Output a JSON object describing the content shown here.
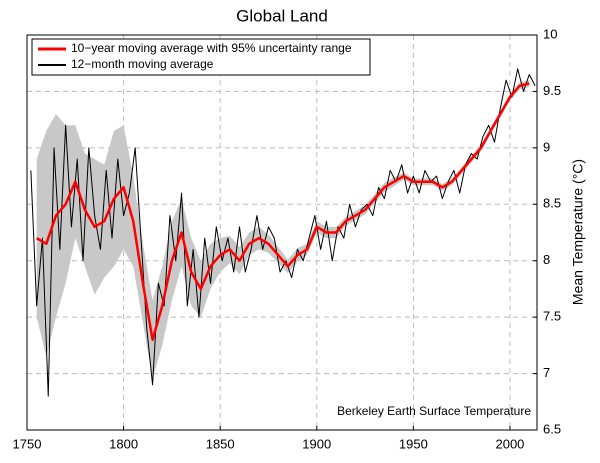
{
  "chart_data": {
    "type": "line",
    "title": "Global Land",
    "ylabel": "Mean Temperature (°C)",
    "annotation": "Berkeley Earth Surface Temperature",
    "xlim": [
      1750,
      2014
    ],
    "ylim": [
      6.5,
      10
    ],
    "xticks": [
      1750,
      1800,
      1850,
      1900,
      1950,
      2000
    ],
    "yticks": [
      6.5,
      7,
      7.5,
      8,
      8.5,
      9,
      9.5,
      10
    ],
    "grid": true,
    "legend": "upper left",
    "series": [
      {
        "name": "10−year moving average with 95% uncertainty range",
        "color": "#ff0000",
        "band_color": "#c8c8c8",
        "x": [
          1755,
          1760,
          1765,
          1770,
          1775,
          1780,
          1785,
          1790,
          1795,
          1800,
          1805,
          1810,
          1815,
          1820,
          1825,
          1830,
          1835,
          1840,
          1845,
          1850,
          1855,
          1860,
          1865,
          1870,
          1875,
          1880,
          1885,
          1890,
          1895,
          1900,
          1905,
          1910,
          1915,
          1920,
          1925,
          1930,
          1935,
          1940,
          1945,
          1950,
          1955,
          1960,
          1965,
          1970,
          1975,
          1980,
          1985,
          1990,
          1995,
          2000,
          2005,
          2010
        ],
        "values": [
          8.2,
          8.15,
          8.4,
          8.5,
          8.7,
          8.45,
          8.3,
          8.35,
          8.55,
          8.65,
          8.35,
          7.8,
          7.3,
          7.6,
          8.0,
          8.25,
          7.9,
          7.75,
          7.95,
          8.05,
          8.1,
          8.0,
          8.15,
          8.2,
          8.15,
          8.05,
          7.95,
          8.05,
          8.1,
          8.3,
          8.25,
          8.25,
          8.35,
          8.4,
          8.45,
          8.55,
          8.65,
          8.7,
          8.75,
          8.7,
          8.7,
          8.7,
          8.65,
          8.7,
          8.8,
          8.9,
          9.0,
          9.15,
          9.3,
          9.45,
          9.55,
          9.57
        ],
        "lower": [
          7.5,
          7.15,
          7.5,
          7.8,
          8.2,
          7.95,
          7.7,
          7.85,
          7.95,
          8.1,
          7.95,
          7.45,
          6.95,
          7.25,
          7.65,
          7.95,
          7.6,
          7.5,
          7.75,
          7.9,
          7.98,
          7.88,
          8.05,
          8.1,
          8.07,
          7.98,
          7.89,
          7.99,
          8.05,
          8.25,
          8.2,
          8.2,
          8.31,
          8.36,
          8.41,
          8.51,
          8.61,
          8.66,
          8.72,
          8.67,
          8.67,
          8.67,
          8.62,
          8.67,
          8.77,
          8.87,
          8.97,
          9.12,
          9.27,
          9.42,
          9.52,
          9.54
        ],
        "upper": [
          8.9,
          9.15,
          9.3,
          9.2,
          9.2,
          8.95,
          8.9,
          8.85,
          9.15,
          9.2,
          8.75,
          8.15,
          7.65,
          7.95,
          8.35,
          8.55,
          8.2,
          8.0,
          8.15,
          8.2,
          8.22,
          8.12,
          8.25,
          8.3,
          8.23,
          8.12,
          8.01,
          8.11,
          8.15,
          8.35,
          8.3,
          8.3,
          8.39,
          8.44,
          8.49,
          8.59,
          8.69,
          8.74,
          8.78,
          8.73,
          8.73,
          8.73,
          8.68,
          8.73,
          8.83,
          8.93,
          9.03,
          9.18,
          9.33,
          9.48,
          9.58,
          9.6
        ]
      },
      {
        "name": "12−month moving average",
        "color": "#000000",
        "x": [
          1752,
          1755,
          1758,
          1761,
          1764,
          1767,
          1770,
          1773,
          1776,
          1779,
          1782,
          1785,
          1788,
          1791,
          1794,
          1797,
          1800,
          1803,
          1806,
          1809,
          1812,
          1815,
          1818,
          1821,
          1824,
          1827,
          1830,
          1833,
          1836,
          1839,
          1842,
          1845,
          1848,
          1851,
          1854,
          1857,
          1860,
          1863,
          1866,
          1869,
          1872,
          1875,
          1878,
          1881,
          1884,
          1887,
          1890,
          1893,
          1896,
          1899,
          1902,
          1905,
          1908,
          1911,
          1914,
          1917,
          1920,
          1923,
          1926,
          1929,
          1932,
          1935,
          1938,
          1941,
          1944,
          1947,
          1950,
          1953,
          1956,
          1959,
          1962,
          1965,
          1968,
          1971,
          1974,
          1977,
          1980,
          1983,
          1986,
          1989,
          1992,
          1995,
          1998,
          2001,
          2004,
          2007,
          2010,
          2013
        ],
        "values": [
          8.8,
          7.6,
          8.2,
          6.8,
          9.0,
          8.1,
          9.2,
          8.3,
          8.9,
          8.0,
          9.0,
          8.4,
          8.1,
          8.8,
          8.2,
          8.9,
          8.4,
          8.6,
          9.0,
          8.2,
          7.4,
          6.9,
          7.8,
          7.6,
          8.4,
          8.0,
          8.6,
          7.6,
          8.1,
          7.5,
          8.2,
          7.8,
          8.3,
          8.0,
          8.2,
          7.9,
          8.3,
          7.9,
          8.1,
          8.4,
          8.1,
          8.3,
          8.2,
          7.9,
          8.0,
          7.85,
          8.1,
          8.0,
          8.2,
          8.4,
          8.1,
          8.35,
          8.0,
          8.3,
          8.2,
          8.5,
          8.3,
          8.45,
          8.5,
          8.4,
          8.65,
          8.55,
          8.8,
          8.7,
          8.85,
          8.6,
          8.75,
          8.6,
          8.8,
          8.7,
          8.75,
          8.55,
          8.7,
          8.8,
          8.6,
          8.85,
          8.95,
          8.9,
          9.1,
          9.2,
          9.05,
          9.35,
          9.6,
          9.45,
          9.7,
          9.5,
          9.65,
          9.55
        ]
      }
    ]
  }
}
